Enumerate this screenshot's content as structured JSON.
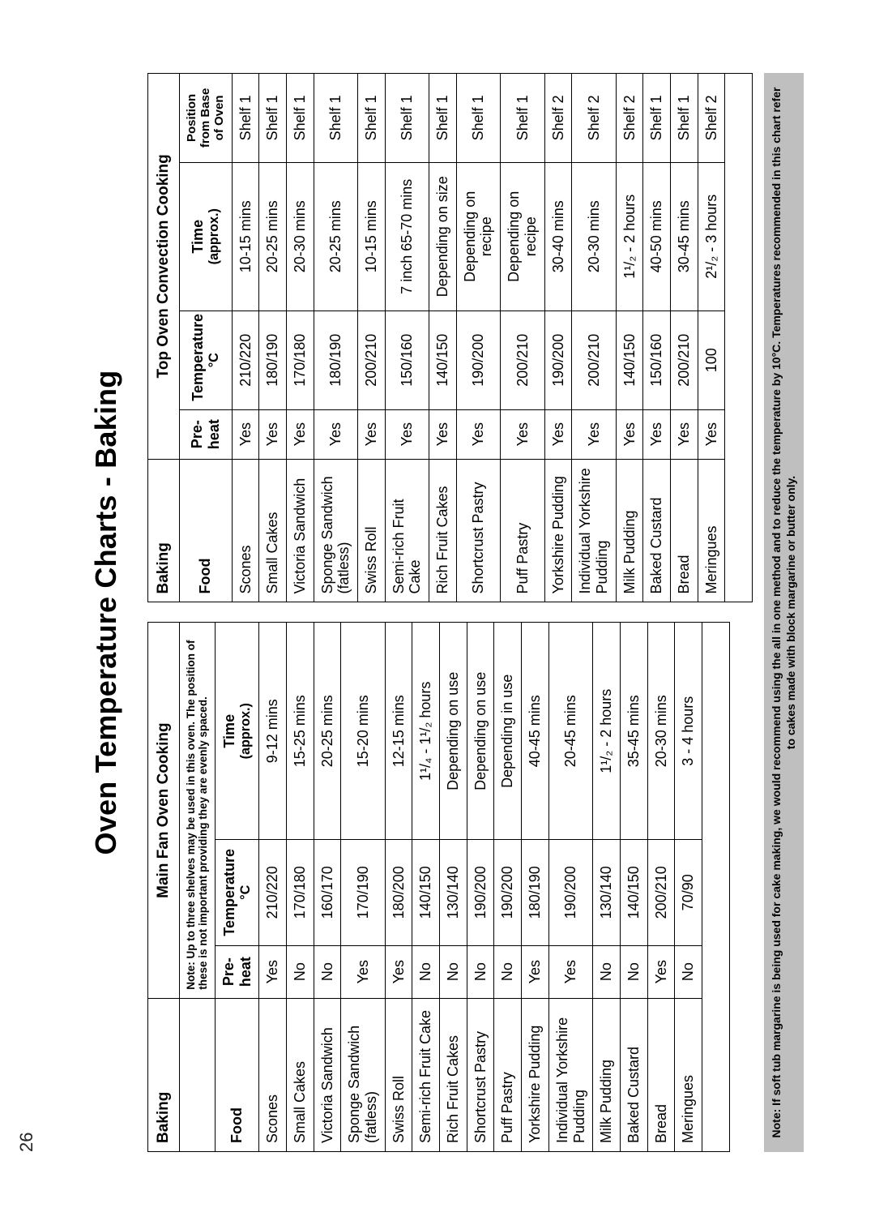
{
  "page_number": "26",
  "title": "Oven Temperature Charts - Baking",
  "left_table": {
    "section": "Baking",
    "method": "Main Fan Oven Cooking",
    "note": "Note: Up to three shelves may be used in this oven. The position of these is not important providing they are evenly spaced.",
    "columns": {
      "food": "Food",
      "preheat": "Pre-heat",
      "temp": "Temperature",
      "temp_unit": "°C",
      "time": "Time",
      "time_sub": "(approx.)"
    },
    "rows": [
      {
        "food": "Scones",
        "pre": "Yes",
        "temp": "210/220",
        "time": "9-12 mins"
      },
      {
        "food": "Small Cakes",
        "pre": "No",
        "temp": "170/180",
        "time": "15-25 mins"
      },
      {
        "food": "Victoria Sandwich",
        "pre": "No",
        "temp": "160/170",
        "time": "20-25 mins"
      },
      {
        "food": "Sponge Sandwich (fatless)",
        "pre": "Yes",
        "temp": "170/190",
        "time": "15-20 mins"
      },
      {
        "food": "Swiss Roll",
        "pre": "Yes",
        "temp": "180/200",
        "time": "12-15 mins"
      },
      {
        "food": "Semi-rich Fruit Cake",
        "pre": "No",
        "temp": "140/150",
        "time": "1¹/₄ - 1¹/₂ hours"
      },
      {
        "food": "Rich Fruit Cakes",
        "pre": "No",
        "temp": "130/140",
        "time": "Depending on use"
      },
      {
        "food": "Shortcrust Pastry",
        "pre": "No",
        "temp": "190/200",
        "time": "Depending on use"
      },
      {
        "food": "Puff Pastry",
        "pre": "No",
        "temp": "190/200",
        "time": "Depending in use"
      },
      {
        "food": "Yorkshire Pudding",
        "pre": "Yes",
        "temp": "180/190",
        "time": "40-45 mins"
      },
      {
        "food": "Individual Yorkshire Pudding",
        "pre": "Yes",
        "temp": "190/200",
        "time": "20-45 mins"
      },
      {
        "food": "Milk Pudding",
        "pre": "No",
        "temp": "130/140",
        "time": "1¹/₂ - 2 hours"
      },
      {
        "food": "Baked Custard",
        "pre": "No",
        "temp": "140/150",
        "time": "35-45 mins"
      },
      {
        "food": "Bread",
        "pre": "Yes",
        "temp": "200/210",
        "time": "20-30 mins"
      },
      {
        "food": "Meringues",
        "pre": "No",
        "temp": "70/90",
        "time": "3 - 4 hours"
      }
    ]
  },
  "right_table": {
    "section": "Baking",
    "method": "Top Oven Convection Cooking",
    "columns": {
      "food": "Food",
      "preheat": "Pre-heat",
      "temp": "Temperature",
      "temp_unit": "°C",
      "time": "Time",
      "time_sub": "(approx.)",
      "pos": "Position from Base of Oven"
    },
    "rows": [
      {
        "food": "Scones",
        "pre": "Yes",
        "temp": "210/220",
        "time": "10-15 mins",
        "pos": "Shelf 1"
      },
      {
        "food": "Small Cakes",
        "pre": "Yes",
        "temp": "180/190",
        "time": "20-25 mins",
        "pos": "Shelf 1"
      },
      {
        "food": "Victoria Sandwich",
        "pre": "Yes",
        "temp": "170/180",
        "time": "20-30 mins",
        "pos": "Shelf 1"
      },
      {
        "food": "Sponge Sandwich (fatless)",
        "pre": "Yes",
        "temp": "180/190",
        "time": "20-25 mins",
        "pos": "Shelf 1"
      },
      {
        "food": "Swiss Roll",
        "pre": "Yes",
        "temp": "200/210",
        "time": "10-15 mins",
        "pos": "Shelf 1"
      },
      {
        "food": "Semi-rich Fruit Cake",
        "pre": "Yes",
        "temp": "150/160",
        "time": "7 inch 65-70 mins",
        "pos": "Shelf 1"
      },
      {
        "food": "Rich Fruit Cakes",
        "pre": "Yes",
        "temp": "140/150",
        "time": "Depending on size",
        "pos": "Shelf 1"
      },
      {
        "food": "Shortcrust Pastry",
        "pre": "Yes",
        "temp": "190/200",
        "time": "Depending on recipe",
        "pos": "Shelf 1"
      },
      {
        "food": "Puff Pastry",
        "pre": "Yes",
        "temp": "200/210",
        "time": "Depending on recipe",
        "pos": "Shelf 1"
      },
      {
        "food": "Yorkshire Pudding",
        "pre": "Yes",
        "temp": "190/200",
        "time": "30-40 mins",
        "pos": "Shelf 2"
      },
      {
        "food": "Individual Yorkshire Pudding",
        "pre": "Yes",
        "temp": "200/210",
        "time": "20-30 mins",
        "pos": "Shelf 2"
      },
      {
        "food": "Milk Pudding",
        "pre": "Yes",
        "temp": "140/150",
        "time": "1¹/₂ - 2 hours",
        "pos": "Shelf 2"
      },
      {
        "food": "Baked Custard",
        "pre": "Yes",
        "temp": "150/160",
        "time": "40-50 mins",
        "pos": "Shelf 1"
      },
      {
        "food": "Bread",
        "pre": "Yes",
        "temp": "200/210",
        "time": "30-45 mins",
        "pos": "Shelf 1"
      },
      {
        "food": "Meringues",
        "pre": "Yes",
        "temp": "100",
        "time": "2¹/₂ - 3 hours",
        "pos": "Shelf 2"
      }
    ]
  },
  "footnote": "Note: If soft tub margarine is being used for cake making, we would recommend using the all in one method and to reduce the temperature by 10°C. Temperatures recommended in this chart refer to cakes made with block margarine or butter only."
}
